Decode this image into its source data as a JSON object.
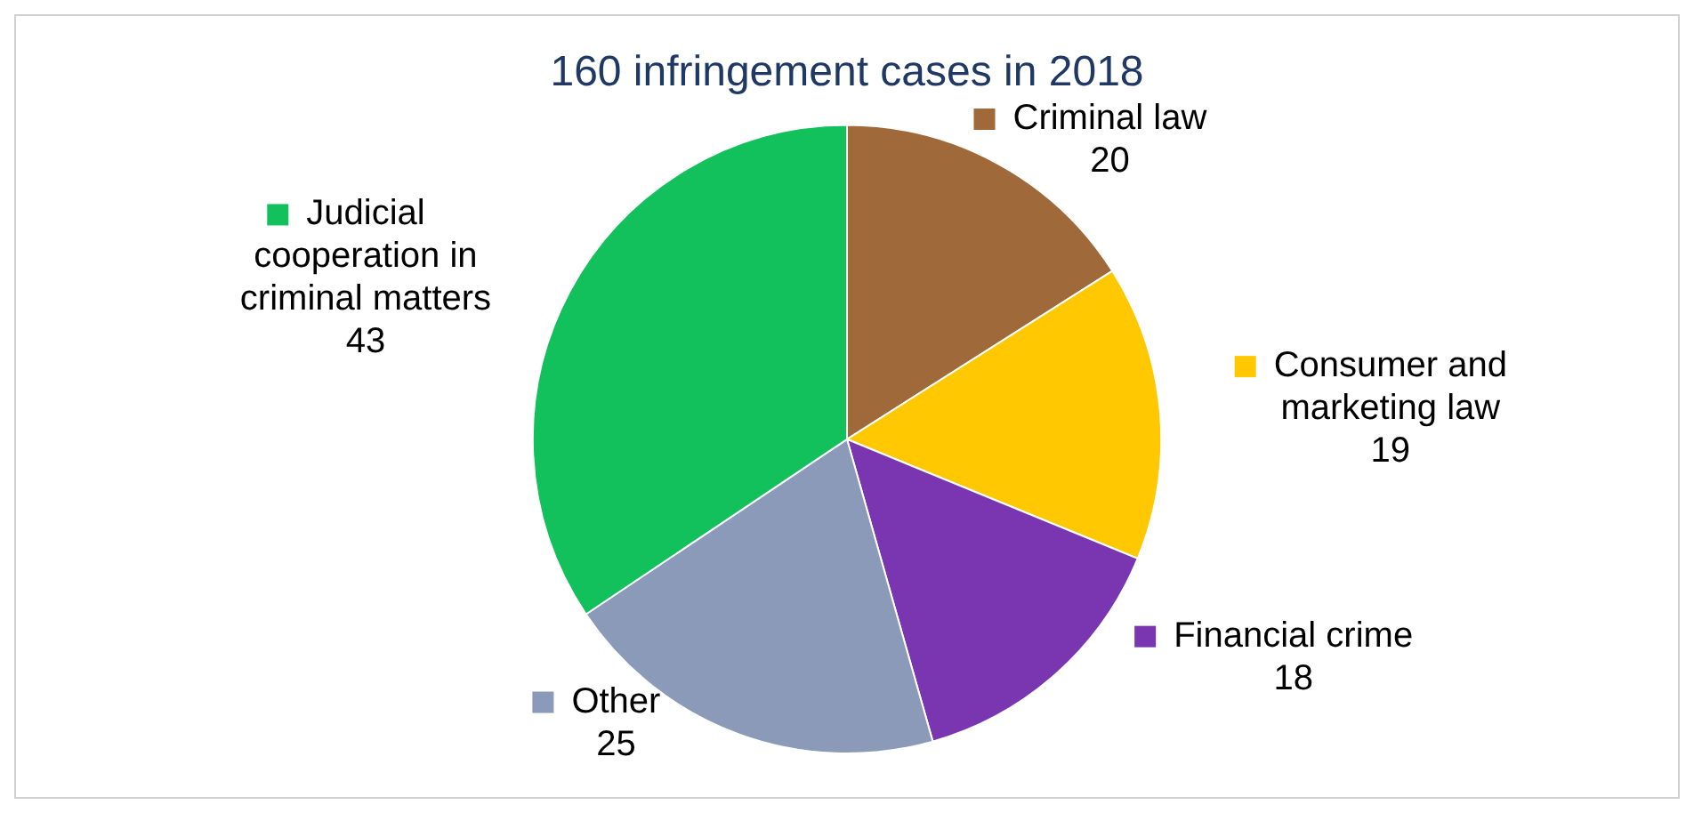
{
  "chart_data": {
    "type": "pie",
    "title": "160 infringement cases in 2018",
    "categories": [
      "Criminal law",
      "Consumer and marketing law",
      "Financial crime",
      "Other",
      "Judicial cooperation in criminal matters"
    ],
    "values": [
      20,
      19,
      18,
      25,
      43
    ],
    "colors": [
      "#a0693a",
      "#ffc800",
      "#7a36b0",
      "#8a9ab8",
      "#12c05c"
    ],
    "data_labels": true,
    "legend": "right"
  }
}
